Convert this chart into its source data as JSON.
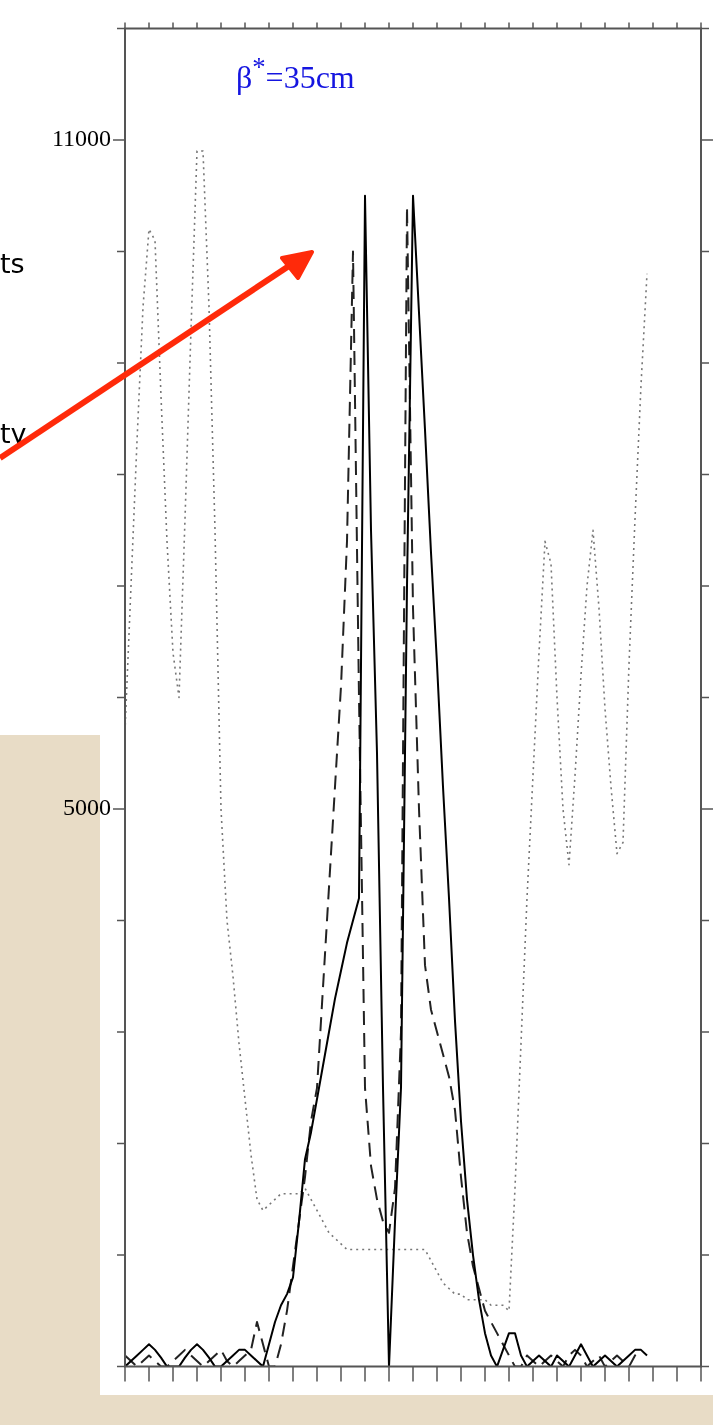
{
  "chart_data": {
    "type": "line",
    "title": "β$^{*}$=35cm",
    "annotations": [
      "ts",
      "ty"
    ],
    "categories": [
      null,
      null,
      null,
      null,
      null,
      null,
      null,
      null,
      null,
      null,
      null,
      null,
      null,
      null,
      null,
      null,
      null,
      null,
      null,
      null,
      null,
      null,
      null,
      null,
      null,
      null,
      null,
      null,
      null,
      null,
      null,
      null,
      null,
      null,
      null,
      null,
      null,
      null,
      null,
      null,
      null,
      null,
      null,
      null,
      null,
      null,
      null,
      null,
      null,
      null,
      null,
      null,
      null,
      null,
      null,
      null,
      null,
      null,
      null,
      null,
      null,
      null,
      null,
      null,
      null,
      null,
      null,
      null,
      null,
      null,
      null,
      null,
      null,
      null,
      null,
      null,
      null,
      null,
      null,
      null,
      null,
      null,
      null,
      null,
      null,
      null,
      null,
      null,
      null,
      null,
      null,
      null,
      null,
      null,
      null,
      null,
      null
    ],
    "series": [
      {
        "color": "#000000",
        "line_style": "solid",
        "values": [
          0,
          50,
          100,
          150,
          200,
          150,
          80,
          0,
          0,
          0,
          80,
          150,
          200,
          150,
          80,
          0,
          0,
          50,
          100,
          150,
          150,
          100,
          50,
          0,
          200,
          400,
          550,
          650,
          800,
          1300,
          1860,
          2100,
          2400,
          2700,
          3000,
          3300,
          3550,
          3800,
          4000,
          4200,
          10500,
          7500,
          5500,
          2500,
          0,
          1300,
          2500,
          7000,
          10500,
          9450,
          8400,
          7300,
          6300,
          5200,
          4200,
          3100,
          2200,
          1500,
          1000,
          600,
          300,
          100,
          0,
          150,
          300,
          300,
          100,
          0,
          50,
          100,
          50,
          0,
          100,
          50,
          0,
          100,
          200,
          100,
          0,
          50,
          100,
          50,
          0,
          50,
          100,
          150,
          150,
          100,
          null,
          null,
          null,
          null,
          null,
          null,
          null,
          null,
          null
        ]
      },
      {
        "color": "#222222",
        "line_style": "dashed",
        "values": [
          100,
          50,
          0,
          50,
          100,
          50,
          0,
          0,
          50,
          100,
          150,
          100,
          50,
          0,
          50,
          100,
          150,
          50,
          0,
          50,
          100,
          150,
          400,
          200,
          0,
          0,
          200,
          500,
          900,
          1300,
          1700,
          2200,
          2500,
          3400,
          4300,
          5200,
          6100,
          7400,
          10000,
          6000,
          2500,
          1800,
          1500,
          1300,
          1200,
          1600,
          3000,
          10400,
          6800,
          5000,
          3600,
          3200,
          3000,
          2800,
          2600,
          2300,
          1700,
          1200,
          900,
          700,
          500,
          400,
          300,
          200,
          100,
          0,
          0,
          100,
          50,
          0,
          50,
          100,
          50,
          0,
          100,
          150,
          100,
          0,
          50,
          100,
          0,
          50,
          100,
          50,
          0,
          100,
          150,
          null,
          null,
          null,
          null,
          null,
          null,
          null,
          null,
          null,
          null
        ]
      },
      {
        "color": "#777777",
        "line_style": "dotted",
        "values": [
          5700,
          7000,
          8300,
          9500,
          10200,
          10100,
          8700,
          7400,
          6400,
          6000,
          7600,
          9300,
          10900,
          10900,
          9500,
          7500,
          5000,
          4000,
          3500,
          2900,
          2400,
          1900,
          1500,
          1400,
          1450,
          1500,
          1550,
          1550,
          1550,
          1550,
          1600,
          1500,
          1400,
          1300,
          1200,
          1150,
          1100,
          1050,
          1050,
          1050,
          1050,
          1050,
          1050,
          1050,
          1050,
          1050,
          1050,
          1050,
          1050,
          1050,
          1050,
          950,
          850,
          750,
          700,
          650,
          650,
          600,
          600,
          600,
          600,
          550,
          550,
          550,
          500,
          1600,
          2900,
          4200,
          5300,
          6400,
          7400,
          7200,
          6000,
          5000,
          4500,
          5300,
          6200,
          7000,
          7500,
          6800,
          5900,
          5200,
          4600,
          4700,
          6300,
          7600,
          8800,
          9800,
          null,
          null,
          null,
          null,
          null,
          null,
          null,
          null,
          null
        ]
      }
    ],
    "ylim": [
      0,
      12000
    ],
    "yticks": [
      {
        "value": 0,
        "label": null
      },
      {
        "value": 1000,
        "label": null
      },
      {
        "value": 2000,
        "label": null
      },
      {
        "value": 3000,
        "label": null
      },
      {
        "value": 4000,
        "label": null
      },
      5000,
      {
        "value": 6000,
        "label": null
      },
      {
        "value": 7000,
        "label": null
      },
      {
        "value": 8000,
        "label": null
      },
      {
        "value": 9000,
        "label": null
      },
      {
        "value": 10000,
        "label": null
      },
      11000,
      {
        "value": 12000,
        "label": null
      }
    ],
    "tick_labels": "y",
    "legend": false,
    "grid": false,
    "marker": "none"
  }
}
